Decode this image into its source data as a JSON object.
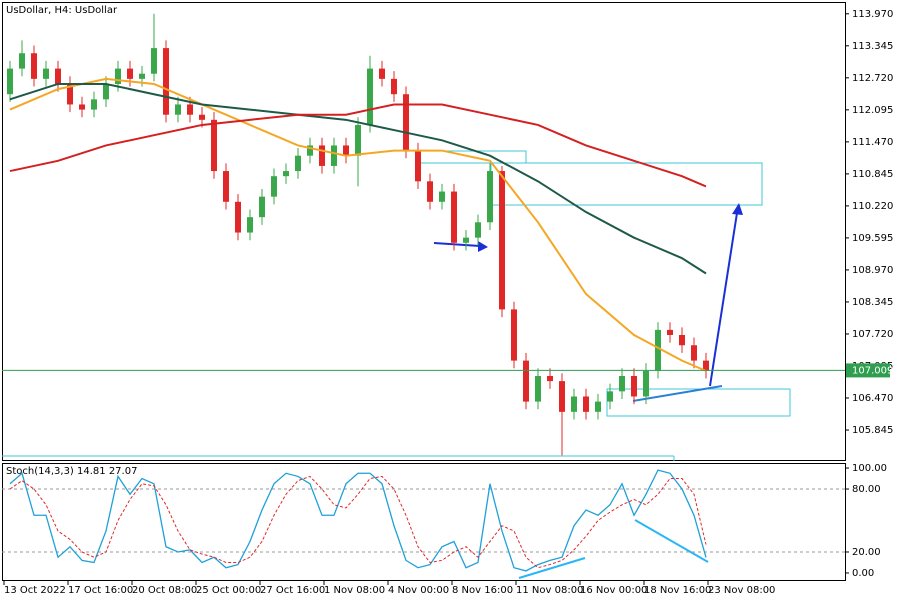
{
  "chart_data": [
    {
      "type": "candlestick",
      "title": "UsDollar, H4:  UsDollar",
      "x_labels": [
        "13 Oct 2022",
        "17 Oct 16:00",
        "20 Oct 08:00",
        "25 Oct 00:00",
        "27 Oct 16:00",
        "1 Nov 08:00",
        "4 Nov 00:00",
        "8 Nov 16:00",
        "11 Nov 08:00",
        "16 Nov 00:00",
        "18 Nov 16:00",
        "23 Nov 08:00"
      ],
      "ylim": [
        105.26,
        114.2
      ],
      "yticks": [
        {
          "value": 113.97,
          "label": "113.970"
        },
        113.345,
        {
          "value": 112.72,
          "label": "112.720"
        },
        112.095,
        {
          "value": 111.47,
          "label": "111.470"
        },
        110.845,
        {
          "value": 110.22,
          "label": "110.220"
        },
        109.595,
        {
          "value": 108.97,
          "label": "108.970"
        },
        108.345,
        {
          "value": 107.72,
          "label": "107.720"
        },
        107.095,
        {
          "value": 106.47,
          "label": "106.470"
        },
        105.845
      ],
      "current_price": 107.009,
      "up_color": "#3aa84a",
      "down_color": "#e02828",
      "open": [
        112.4,
        112.9,
        113.2,
        112.7,
        112.9,
        112.6,
        112.2,
        112.1,
        112.3,
        112.6,
        112.9,
        112.7,
        112.8,
        113.3,
        112.0,
        112.2,
        112.0,
        111.9,
        110.9,
        110.3,
        109.7,
        110.0,
        110.4,
        110.8,
        110.9,
        111.2,
        111.4,
        111.0,
        111.4,
        111.2,
        111.8,
        112.9,
        112.7,
        112.4,
        111.3,
        110.7,
        110.3,
        110.5,
        109.5,
        109.6,
        109.9,
        110.9,
        108.2,
        107.2,
        106.4,
        106.9,
        106.8,
        106.2,
        106.5,
        106.2,
        106.4,
        106.6,
        106.9,
        106.5,
        107.0,
        107.8,
        107.7,
        107.5,
        107.2
      ],
      "high": [
        113.05,
        113.45,
        113.35,
        113.05,
        113.05,
        112.75,
        112.35,
        112.45,
        112.75,
        113.05,
        113.05,
        112.95,
        113.97,
        113.45,
        112.35,
        112.35,
        112.15,
        112.05,
        111.05,
        110.45,
        110.15,
        110.55,
        110.95,
        111.05,
        111.35,
        111.55,
        111.55,
        111.55,
        111.55,
        111.95,
        113.15,
        113.05,
        112.85,
        112.55,
        111.45,
        110.85,
        110.65,
        110.65,
        109.75,
        110.05,
        111.05,
        111.0,
        108.35,
        107.35,
        107.05,
        107.05,
        106.95,
        106.65,
        106.65,
        106.55,
        106.75,
        107.05,
        107.05,
        107.15,
        107.95,
        107.95,
        107.85,
        107.65,
        107.35
      ],
      "low": [
        112.25,
        112.75,
        112.55,
        112.55,
        112.45,
        112.05,
        111.95,
        111.95,
        112.15,
        112.45,
        112.55,
        112.55,
        112.65,
        111.85,
        111.85,
        111.85,
        111.75,
        110.75,
        110.15,
        109.55,
        109.55,
        109.85,
        110.25,
        110.65,
        110.75,
        111.05,
        110.85,
        110.85,
        111.05,
        110.6,
        111.65,
        112.55,
        112.25,
        111.15,
        110.55,
        110.15,
        110.15,
        109.35,
        109.35,
        109.45,
        109.75,
        108.05,
        107.05,
        106.25,
        106.25,
        106.65,
        105.35,
        106.05,
        106.05,
        106.05,
        106.25,
        106.45,
        106.35,
        106.35,
        106.85,
        107.55,
        107.35,
        107.05,
        106.85
      ],
      "close": [
        112.9,
        113.2,
        112.7,
        112.9,
        112.6,
        112.2,
        112.1,
        112.3,
        112.6,
        112.9,
        112.7,
        112.8,
        113.3,
        112.0,
        112.2,
        112.0,
        111.9,
        110.9,
        110.3,
        109.7,
        110.0,
        110.4,
        110.8,
        110.9,
        111.2,
        111.4,
        111.0,
        111.4,
        111.2,
        111.8,
        112.9,
        112.7,
        112.4,
        111.3,
        110.7,
        110.3,
        110.5,
        109.5,
        109.6,
        109.9,
        110.9,
        108.2,
        107.2,
        106.4,
        106.9,
        106.8,
        106.2,
        106.5,
        106.2,
        106.4,
        106.6,
        106.9,
        106.5,
        107.0,
        107.8,
        107.7,
        107.5,
        107.2,
        107.0
      ],
      "lines": [
        {
          "color": "#f5a623",
          "x": [
            0,
            4,
            8,
            12,
            16,
            20,
            24,
            28,
            32,
            36,
            40,
            44,
            48,
            52,
            56,
            58
          ],
          "values": [
            112.1,
            112.5,
            112.7,
            112.6,
            112.2,
            111.8,
            111.4,
            111.2,
            111.3,
            111.3,
            111.1,
            109.9,
            108.5,
            107.7,
            107.2,
            107.0
          ]
        },
        {
          "color": "#1d5a48",
          "x": [
            0,
            4,
            8,
            12,
            16,
            20,
            24,
            28,
            32,
            36,
            40,
            44,
            48,
            52,
            56,
            58
          ],
          "values": [
            112.3,
            112.6,
            112.6,
            112.4,
            112.2,
            112.1,
            112.0,
            111.9,
            111.7,
            111.5,
            111.2,
            110.7,
            110.1,
            109.6,
            109.2,
            108.9
          ]
        },
        {
          "color": "#d42020",
          "x": [
            0,
            4,
            8,
            12,
            16,
            20,
            24,
            28,
            32,
            36,
            40,
            44,
            48,
            52,
            56,
            58
          ],
          "values": [
            110.9,
            111.1,
            111.4,
            111.6,
            111.8,
            111.9,
            112.0,
            112.0,
            112.2,
            112.2,
            112.0,
            111.8,
            111.4,
            111.1,
            110.8,
            110.6
          ]
        }
      ]
    },
    {
      "type": "stochastic",
      "title": "Stoch(14,3,3) 14.81 27.07",
      "ylim": [
        -6.7,
        104.8
      ],
      "yticks": [
        {
          "value": 100,
          "label": "100.00"
        },
        {
          "value": 80,
          "label": "80.00"
        },
        {
          "value": 20,
          "label": "20.00"
        },
        {
          "value": 0,
          "label": "0.00"
        }
      ],
      "levels": [
        80,
        20
      ],
      "series": [
        {
          "color": "#1fa0d8",
          "values": [
            85,
            95,
            55,
            55,
            15,
            25,
            12,
            10,
            40,
            92,
            75,
            90,
            85,
            25,
            20,
            22,
            10,
            15,
            5,
            8,
            30,
            60,
            85,
            95,
            92,
            85,
            55,
            55,
            85,
            95,
            95,
            85,
            45,
            12,
            5,
            8,
            25,
            30,
            5,
            10,
            85,
            40,
            5,
            2,
            8,
            12,
            15,
            45,
            60,
            55,
            65,
            85,
            55,
            75,
            98,
            95,
            80,
            55,
            14.81
          ]
        },
        {
          "color": "#e02828",
          "values": [
            80,
            88,
            80,
            65,
            40,
            32,
            20,
            15,
            20,
            50,
            70,
            85,
            83,
            65,
            40,
            22,
            18,
            15,
            10,
            10,
            15,
            30,
            55,
            75,
            88,
            92,
            80,
            65,
            62,
            75,
            90,
            92,
            80,
            55,
            25,
            10,
            12,
            20,
            25,
            15,
            30,
            45,
            40,
            15,
            5,
            8,
            12,
            22,
            35,
            50,
            58,
            65,
            70,
            65,
            75,
            90,
            90,
            75,
            27.07
          ]
        }
      ]
    }
  ]
}
